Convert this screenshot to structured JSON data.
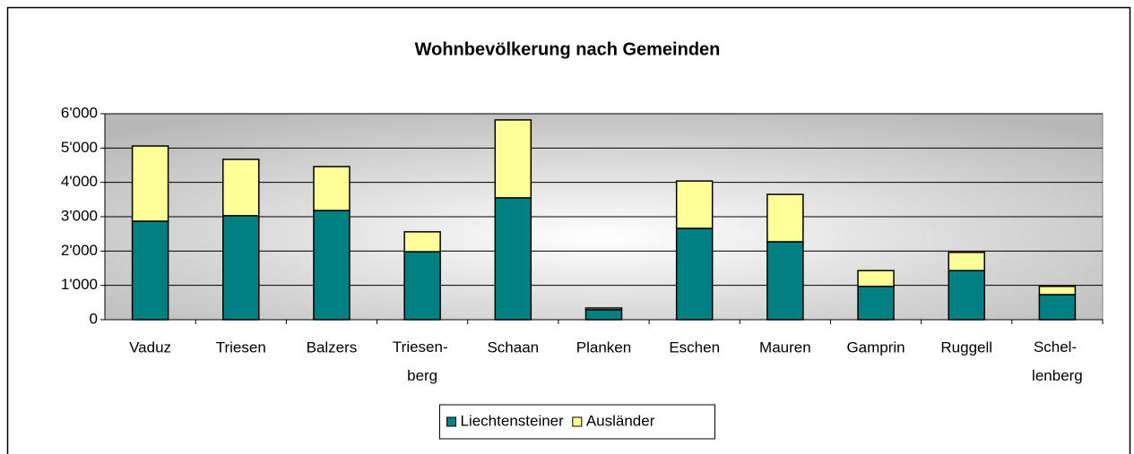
{
  "chart_data": {
    "type": "stacked-bar",
    "title": "Wohnbevölkerung nach Gemeinden",
    "categories": [
      "Vaduz",
      "Triesen",
      "Balzers",
      "Triesen-\nberg",
      "Schaan",
      "Planken",
      "Eschen",
      "Mauren",
      "Gamprin",
      "Ruggell",
      "Schel-\nlenberg"
    ],
    "series": [
      {
        "name": "Liechtensteiner",
        "color": "#008080",
        "values": [
          2870,
          3030,
          3180,
          1980,
          3550,
          290,
          2660,
          2270,
          970,
          1430,
          730
        ]
      },
      {
        "name": "Ausländer",
        "color": "#ffff99",
        "values": [
          2190,
          1640,
          1280,
          580,
          2270,
          50,
          1380,
          1380,
          460,
          530,
          240
        ]
      }
    ],
    "ylim": [
      0,
      6000
    ],
    "yticks": [
      0,
      {
        "value": 1000,
        "label": "1'000"
      },
      {
        "value": 2000,
        "label": "2'000"
      },
      {
        "value": 3000,
        "label": "3'000"
      },
      {
        "value": 4000,
        "label": "4'000"
      },
      {
        "value": 5000,
        "label": "5'000"
      },
      {
        "value": 6000,
        "label": "6'000"
      }
    ],
    "grid": true,
    "legend": "bottom"
  }
}
